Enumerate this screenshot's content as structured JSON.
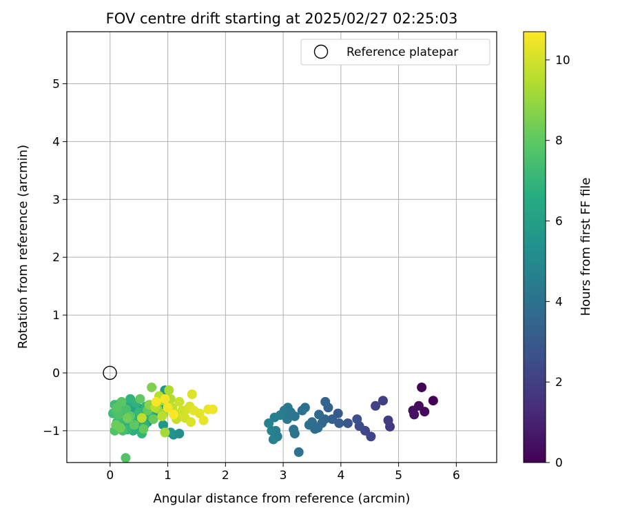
{
  "chart_data": {
    "type": "scatter",
    "title": "FOV centre drift starting at 2025/02/27 02:25:03",
    "xlabel": "Angular distance from reference (arcmin)",
    "ylabel": "Rotation from reference (arcmin)",
    "xlim": [
      -0.75,
      6.7
    ],
    "ylim": [
      -1.55,
      5.9
    ],
    "x_ticks": [
      0,
      1,
      2,
      3,
      4,
      5,
      6
    ],
    "y_ticks": [
      -1,
      0,
      1,
      2,
      3,
      4,
      5
    ],
    "grid": true,
    "legend_position": "top-right",
    "reference": {
      "label": "Reference platepar",
      "x": 0.0,
      "y": 0.0,
      "marker": "open-circle"
    },
    "colorbar": {
      "label": "Hours from first FF file",
      "range": [
        0,
        10.7
      ],
      "ticks": [
        0,
        2,
        4,
        6,
        8,
        10
      ],
      "colormap": "viridis"
    },
    "points": [
      [
        5.6,
        -0.48,
        0.0
      ],
      [
        5.4,
        -0.25,
        0.1
      ],
      [
        5.45,
        -0.67,
        0.2
      ],
      [
        5.35,
        -0.57,
        0.3
      ],
      [
        5.25,
        -0.65,
        0.4
      ],
      [
        5.27,
        -0.72,
        0.5
      ],
      [
        4.85,
        -0.93,
        1.8
      ],
      [
        4.82,
        -0.82,
        1.9
      ],
      [
        4.73,
        -0.48,
        2.0
      ],
      [
        4.6,
        -0.57,
        2.1
      ],
      [
        4.52,
        -1.1,
        2.2
      ],
      [
        4.42,
        -1.0,
        2.3
      ],
      [
        4.32,
        -0.92,
        2.5
      ],
      [
        4.28,
        -0.8,
        2.6
      ],
      [
        4.12,
        -0.87,
        2.8
      ],
      [
        3.95,
        -0.7,
        3.0
      ],
      [
        3.97,
        -0.87,
        3.1
      ],
      [
        3.85,
        -0.8,
        3.2
      ],
      [
        3.78,
        -0.6,
        3.3
      ],
      [
        3.73,
        -0.5,
        3.4
      ],
      [
        3.72,
        -0.8,
        3.5
      ],
      [
        3.67,
        -0.87,
        3.6
      ],
      [
        3.62,
        -0.72,
        3.7
      ],
      [
        3.6,
        -0.95,
        3.75
      ],
      [
        3.55,
        -0.97,
        3.8
      ],
      [
        3.5,
        -0.85,
        3.85
      ],
      [
        3.45,
        -0.9,
        3.9
      ],
      [
        3.38,
        -0.6,
        3.95
      ],
      [
        3.33,
        -0.65,
        4.0
      ],
      [
        3.27,
        -1.37,
        4.05
      ],
      [
        3.2,
        -1.05,
        4.1
      ],
      [
        3.18,
        -0.98,
        4.15
      ],
      [
        3.2,
        -0.75,
        4.2
      ],
      [
        3.13,
        -0.68,
        4.25
      ],
      [
        3.08,
        -0.6,
        4.3
      ],
      [
        3.07,
        -0.8,
        4.35
      ],
      [
        3.02,
        -0.65,
        4.4
      ],
      [
        2.95,
        -0.73,
        4.45
      ],
      [
        2.9,
        -1.1,
        4.5
      ],
      [
        2.87,
        -1.0,
        4.55
      ],
      [
        2.85,
        -0.77,
        4.6
      ],
      [
        2.83,
        -1.15,
        4.65
      ],
      [
        2.8,
        -1.0,
        4.7
      ],
      [
        2.75,
        -0.87,
        4.75
      ],
      [
        1.2,
        -1.05,
        5.3
      ],
      [
        1.1,
        -1.07,
        5.4
      ],
      [
        1.05,
        -1.03,
        5.5
      ],
      [
        0.95,
        -0.3,
        5.6
      ],
      [
        0.92,
        -0.9,
        5.65
      ],
      [
        0.85,
        -0.6,
        5.7
      ],
      [
        0.78,
        -0.7,
        5.75
      ],
      [
        0.65,
        -0.85,
        5.8
      ],
      [
        0.6,
        -0.7,
        5.85
      ],
      [
        0.55,
        -0.62,
        5.9
      ],
      [
        0.52,
        -0.95,
        6.0
      ],
      [
        0.48,
        -0.78,
        6.05
      ],
      [
        0.45,
        -0.58,
        6.1
      ],
      [
        0.42,
        -0.7,
        6.15
      ],
      [
        0.38,
        -0.5,
        6.2
      ],
      [
        0.36,
        -0.85,
        6.25
      ],
      [
        0.33,
        -0.6,
        6.3
      ],
      [
        0.3,
        -0.72,
        6.35
      ],
      [
        0.28,
        -0.55,
        6.4
      ],
      [
        0.25,
        -0.9,
        6.45
      ],
      [
        0.22,
        -0.65,
        6.5
      ],
      [
        0.18,
        -0.75,
        6.55
      ],
      [
        0.15,
        -0.95,
        6.6
      ],
      [
        0.12,
        -0.62,
        6.65
      ],
      [
        0.4,
        -1.0,
        6.7
      ],
      [
        0.5,
        -0.8,
        6.75
      ],
      [
        0.6,
        -0.9,
        6.8
      ],
      [
        0.7,
        -0.75,
        6.85
      ],
      [
        0.35,
        -0.45,
        6.9
      ],
      [
        0.45,
        -0.52,
        6.95
      ],
      [
        0.55,
        -1.05,
        7.0
      ],
      [
        0.62,
        -0.58,
        7.05
      ],
      [
        0.25,
        -0.8,
        7.1
      ],
      [
        0.3,
        -0.98,
        7.15
      ],
      [
        0.5,
        -0.68,
        7.2
      ],
      [
        0.2,
        -0.58,
        7.25
      ],
      [
        0.05,
        -0.7,
        7.3
      ],
      [
        0.08,
        -0.55,
        7.35
      ],
      [
        0.12,
        -0.85,
        7.4
      ],
      [
        0.18,
        -0.52,
        7.45
      ],
      [
        0.22,
        -1.0,
        7.5
      ],
      [
        0.28,
        -0.63,
        7.55
      ],
      [
        0.32,
        -0.8,
        7.6
      ],
      [
        0.1,
        -0.65,
        7.65
      ],
      [
        0.15,
        -0.72,
        7.7
      ],
      [
        0.08,
        -1.0,
        7.75
      ],
      [
        0.27,
        -1.47,
        7.8
      ],
      [
        0.12,
        -0.6,
        7.85
      ],
      [
        0.2,
        -0.5,
        7.9
      ],
      [
        0.35,
        -0.75,
        7.95
      ],
      [
        0.42,
        -0.9,
        8.0
      ],
      [
        0.52,
        -0.45,
        8.05
      ],
      [
        0.58,
        -0.97,
        8.1
      ],
      [
        0.65,
        -0.65,
        8.15
      ],
      [
        0.75,
        -0.8,
        8.2
      ],
      [
        0.1,
        -0.9,
        8.25
      ],
      [
        0.18,
        -0.95,
        8.3
      ],
      [
        0.3,
        -0.78,
        8.35
      ],
      [
        0.72,
        -0.25,
        8.6
      ],
      [
        0.68,
        -0.55,
        8.8
      ],
      [
        0.82,
        -0.62,
        9.0
      ],
      [
        0.88,
        -0.48,
        9.1
      ],
      [
        0.93,
        -0.7,
        9.2
      ],
      [
        0.95,
        -1.03,
        9.25
      ],
      [
        1.0,
        -0.55,
        9.3
      ],
      [
        1.02,
        -0.3,
        9.4
      ],
      [
        1.05,
        -0.45,
        9.45
      ],
      [
        0.85,
        -0.4,
        9.5
      ],
      [
        0.78,
        -0.6,
        9.55
      ],
      [
        0.9,
        -0.75,
        9.6
      ],
      [
        0.55,
        -0.78,
        9.65
      ],
      [
        1.08,
        -0.6,
        9.7
      ],
      [
        1.12,
        -0.7,
        9.75
      ],
      [
        1.15,
        -0.8,
        9.8
      ],
      [
        1.2,
        -0.5,
        9.85
      ],
      [
        1.25,
        -0.65,
        9.9
      ],
      [
        1.28,
        -0.75,
        9.95
      ],
      [
        1.3,
        -0.78,
        10.0
      ],
      [
        1.35,
        -0.62,
        10.05
      ],
      [
        1.38,
        -0.58,
        10.1
      ],
      [
        1.4,
        -0.85,
        10.15
      ],
      [
        1.42,
        -0.37,
        10.2
      ],
      [
        1.45,
        -0.65,
        10.25
      ],
      [
        1.55,
        -0.7,
        10.3
      ],
      [
        1.62,
        -0.82,
        10.35
      ],
      [
        1.7,
        -0.63,
        10.4
      ],
      [
        1.78,
        -0.63,
        10.45
      ],
      [
        1.0,
        -0.6,
        10.5
      ],
      [
        0.95,
        -0.45,
        10.55
      ],
      [
        0.8,
        -0.5,
        10.6
      ],
      [
        1.1,
        -0.72,
        10.65
      ]
    ]
  }
}
